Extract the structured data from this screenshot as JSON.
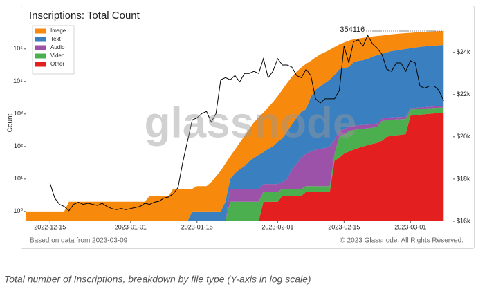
{
  "chart_data": {
    "type": "area",
    "stacked": true,
    "title": "Inscriptions: Total Count",
    "ylabel": "Count",
    "watermark": "glassnode",
    "source": "Based on data from 2023-03-09",
    "copyright": "© 2023 Glassnode. All Rights Reserved.",
    "caption": "Total number of Inscriptions, breakdown by file type (Y-axis in log scale)",
    "ylog": true,
    "grid": false,
    "legend": "upper left",
    "annotations": [
      {
        "text": "354116"
      }
    ],
    "xlim": [
      "2022-12-10",
      "2023-03-10"
    ],
    "xticks": [
      "2022-12-15",
      "2023-01-01",
      "2023-01-15",
      "2023-02-01",
      "2023-02-15",
      "2023-03-01"
    ],
    "ylim": [
      0.5,
      550000
    ],
    "yticks": [
      {
        "value": 1,
        "label": "10⁰"
      },
      {
        "value": 10,
        "label": "10¹"
      },
      {
        "value": 100,
        "label": "10²"
      },
      {
        "value": 1000,
        "label": "10³"
      },
      {
        "value": 10000,
        "label": "10⁴"
      },
      {
        "value": 100000,
        "label": "10⁵"
      }
    ],
    "y2lim": [
      16000,
      25300
    ],
    "y2ticks": [
      {
        "value": 16000,
        "label": "$16k"
      },
      {
        "value": 18000,
        "label": "$18k"
      },
      {
        "value": 20000,
        "label": "$20k"
      },
      {
        "value": 22000,
        "label": "$22k"
      },
      {
        "value": 24000,
        "label": "$24k"
      }
    ],
    "x": [
      "2022-12-10",
      "2022-12-11",
      "2022-12-12",
      "2022-12-13",
      "2022-12-14",
      "2022-12-15",
      "2022-12-16",
      "2022-12-17",
      "2022-12-18",
      "2022-12-19",
      "2022-12-20",
      "2022-12-21",
      "2022-12-22",
      "2022-12-23",
      "2022-12-24",
      "2022-12-25",
      "2022-12-26",
      "2022-12-27",
      "2022-12-28",
      "2022-12-29",
      "2022-12-30",
      "2022-12-31",
      "2023-01-01",
      "2023-01-02",
      "2023-01-03",
      "2023-01-04",
      "2023-01-05",
      "2023-01-06",
      "2023-01-07",
      "2023-01-08",
      "2023-01-09",
      "2023-01-10",
      "2023-01-11",
      "2023-01-12",
      "2023-01-13",
      "2023-01-14",
      "2023-01-15",
      "2023-01-16",
      "2023-01-17",
      "2023-01-18",
      "2023-01-19",
      "2023-01-20",
      "2023-01-21",
      "2023-01-22",
      "2023-01-23",
      "2023-01-24",
      "2023-01-25",
      "2023-01-26",
      "2023-01-27",
      "2023-01-28",
      "2023-01-29",
      "2023-01-30",
      "2023-01-31",
      "2023-02-01",
      "2023-02-02",
      "2023-02-03",
      "2023-02-04",
      "2023-02-05",
      "2023-02-06",
      "2023-02-07",
      "2023-02-08",
      "2023-02-09",
      "2023-02-10",
      "2023-02-11",
      "2023-02-12",
      "2023-02-13",
      "2023-02-14",
      "2023-02-15",
      "2023-02-16",
      "2023-02-17",
      "2023-02-18",
      "2023-02-19",
      "2023-02-20",
      "2023-02-21",
      "2023-02-22",
      "2023-02-23",
      "2023-02-24",
      "2023-02-25",
      "2023-02-26",
      "2023-02-27",
      "2023-02-28",
      "2023-03-01",
      "2023-03-02",
      "2023-03-03",
      "2023-03-04",
      "2023-03-05",
      "2023-03-06",
      "2023-03-07",
      "2023-03-08"
    ],
    "series": [
      {
        "name": "Image",
        "color": "#f7890c",
        "values": [
          1,
          1,
          1,
          1,
          1,
          1,
          1,
          1,
          1,
          2,
          2,
          2,
          2,
          2,
          2,
          2,
          2,
          2,
          2,
          2,
          2,
          2,
          2,
          2,
          2,
          2,
          3,
          3,
          3,
          3,
          3,
          5,
          5,
          5,
          5,
          4,
          5,
          5,
          5,
          7,
          11,
          17,
          28,
          40,
          65,
          110,
          185,
          305,
          505,
          745,
          1033,
          1515,
          2200,
          3360,
          5420,
          8710,
          13520,
          19220,
          25840,
          33600,
          39600,
          49400,
          60900,
          71000,
          83500,
          99000,
          114000,
          132000,
          152000,
          159000,
          165000,
          175000,
          180000,
          182000,
          186000,
          187000,
          190000,
          194000,
          200000,
          203000,
          205000,
          207000,
          210000,
          211000,
          213000,
          216000,
          218000,
          219000,
          221116
        ]
      },
      {
        "name": "Text",
        "color": "#3a7fbf",
        "values": [
          0,
          0,
          0,
          0,
          0,
          0,
          0,
          0,
          0,
          0,
          0,
          0,
          0,
          0,
          0,
          0,
          0,
          0,
          0,
          0,
          0,
          0,
          0,
          0,
          0,
          0,
          0,
          0,
          0,
          0,
          0,
          0,
          0,
          0,
          0,
          1,
          1,
          1,
          1,
          1,
          1,
          1,
          2,
          5,
          10,
          15,
          20,
          30,
          40,
          50,
          60,
          78,
          93,
          133,
          172,
          280,
          460,
          750,
          1115,
          1340,
          3330,
          5520,
          7015,
          8910,
          11400,
          15840,
          23690,
          25660,
          27590,
          38570,
          42550,
          44540,
          49530,
          57510,
          63490,
          70280,
          77230,
          85220,
          89200,
          94190,
          99180,
          103520,
          108460,
          114420,
          118380,
          121340,
          124300,
          128260,
          131220
        ]
      },
      {
        "name": "Audio",
        "color": "#9b52a8",
        "values": [
          0,
          0,
          0,
          0,
          0,
          0,
          0,
          0,
          0,
          0,
          0,
          0,
          0,
          0,
          0,
          0,
          0,
          0,
          0,
          0,
          0,
          0,
          0,
          0,
          0,
          0,
          0,
          0,
          0,
          0,
          0,
          0,
          0,
          0,
          0,
          0,
          0,
          0,
          0,
          0,
          0,
          0,
          0,
          3,
          3,
          3,
          3,
          3,
          3,
          3,
          3,
          3,
          3,
          3,
          3,
          5,
          15,
          25,
          40,
          54,
          64,
          74,
          79,
          84,
          94,
          100,
          110,
          110,
          110,
          110,
          110,
          110,
          110,
          110,
          110,
          120,
          120,
          120,
          120,
          120,
          120,
          130,
          140,
          150,
          160,
          170,
          180,
          190,
          200
        ]
      },
      {
        "name": "Video",
        "color": "#4caf4f",
        "values": [
          0,
          0,
          0,
          0,
          0,
          0,
          0,
          0,
          0,
          0,
          0,
          0,
          0,
          0,
          0,
          0,
          0,
          0,
          0,
          0,
          0,
          0,
          0,
          0,
          0,
          0,
          0,
          0,
          0,
          0,
          0,
          0,
          0,
          0,
          0,
          0,
          0,
          0,
          0,
          0,
          0,
          0,
          0,
          2,
          2,
          2,
          2,
          2,
          2,
          2,
          2,
          2,
          2,
          2,
          2,
          2,
          2,
          2,
          2,
          2,
          2,
          2,
          2,
          2,
          2,
          23,
          155,
          170,
          230,
          240,
          250,
          250,
          250,
          260,
          270,
          450,
          450,
          450,
          460,
          460,
          460,
          460,
          470,
          480,
          480,
          480,
          480,
          480,
          480
        ]
      },
      {
        "name": "Other",
        "color": "#e3201f",
        "values": [
          0,
          0,
          0,
          0,
          0,
          0,
          0,
          0,
          0,
          0,
          0,
          0,
          0,
          0,
          0,
          0,
          0,
          0,
          0,
          0,
          0,
          0,
          0,
          0,
          0,
          0,
          0,
          0,
          0,
          0,
          0,
          0,
          0,
          0,
          0,
          0,
          0,
          0,
          0,
          0,
          0,
          0,
          0,
          0,
          0,
          0,
          0,
          0,
          0,
          0,
          2,
          2,
          2,
          2,
          3,
          3,
          3,
          3,
          3,
          4,
          4,
          4,
          4,
          4,
          4,
          37,
          45,
          60,
          70,
          80,
          90,
          100,
          110,
          120,
          130,
          150,
          200,
          210,
          220,
          230,
          240,
          890,
          930,
          950,
          980,
          1010,
          1040,
          1070,
          1100
        ]
      },
      {
        "color": "#000000",
        "axis": "y2",
        "values": [
          null,
          null,
          null,
          null,
          null,
          17800,
          17100,
          16800,
          16700,
          16500,
          16800,
          16900,
          16800,
          16850,
          16800,
          16750,
          16850,
          16700,
          16600,
          16550,
          16600,
          16550,
          16600,
          16650,
          16700,
          16850,
          16800,
          16900,
          16950,
          17100,
          17150,
          17300,
          17600,
          18800,
          19800,
          20800,
          20900,
          21100,
          21200,
          20700,
          21100,
          22700,
          22800,
          22700,
          22900,
          22600,
          23000,
          23000,
          23100,
          23000,
          23700,
          22800,
          23100,
          23700,
          23400,
          23400,
          23300,
          22900,
          22800,
          23200,
          22900,
          21800,
          21600,
          21800,
          21800,
          21800,
          22200,
          24300,
          23500,
          24500,
          24600,
          24300,
          24800,
          24400,
          24200,
          23900,
          23200,
          23100,
          23500,
          23500,
          23100,
          23600,
          23500,
          22400,
          22300,
          22400,
          22400,
          22200,
          21700
        ]
      }
    ]
  }
}
